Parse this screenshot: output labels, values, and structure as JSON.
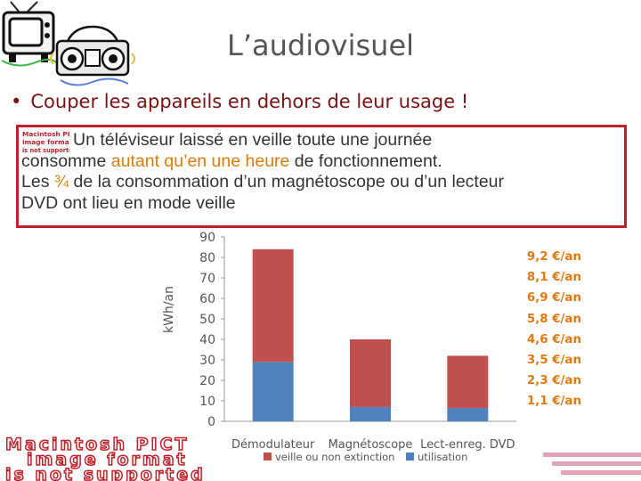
{
  "slide": {
    "title": "L’audiovisuel",
    "bullet": "Couper les appareils en dehors de leur usage !",
    "bullet_marker": "•",
    "note": {
      "line1_a": "Un téléviseur laissé en veille toute une journée",
      "line2_a": "consomme ",
      "line2_hl1": "autant qu’en une heure",
      "line2_b": " de fonctionnement.",
      "line3_a": "Les ",
      "line3_hl": "¾",
      "line3_b": " de la consommation d’un magnétoscope ou d’un lecteur",
      "line4": "DVD ont lieu en mode veille"
    },
    "placeholder_small": [
      "Macintosh PICT",
      "image format",
      "is not supported"
    ],
    "placeholder_big": [
      "Macintosh PICT",
      "image format",
      "is not supported"
    ],
    "costs": [
      "9,2 €/an",
      "8,1 €/an",
      "6,9 €/an",
      "5,8 €/an",
      "4,6 €/an",
      "3,5 €/an",
      "2,3 €/an",
      "1,1 €/an"
    ],
    "colors": {
      "veille": "#c0504d",
      "utilisation": "#4f81bd",
      "accent": "#c0202a",
      "cost_text": "#e07a10"
    }
  },
  "chart_data": {
    "type": "bar",
    "stacked": true,
    "categories": [
      "Démodulateur",
      "Magnétoscope",
      "Lect-enreg. DVD"
    ],
    "series": [
      {
        "name": "utilisation",
        "values": [
          29,
          7,
          6.5
        ]
      },
      {
        "name": "veille ou non extinction",
        "values": [
          55,
          33,
          25.5
        ]
      }
    ],
    "ylabel": "kWh/an",
    "ylim": [
      0,
      90
    ],
    "yticks": [
      0,
      10,
      20,
      30,
      40,
      50,
      60,
      70,
      80,
      90
    ],
    "legend": "bottom",
    "grid": false
  }
}
